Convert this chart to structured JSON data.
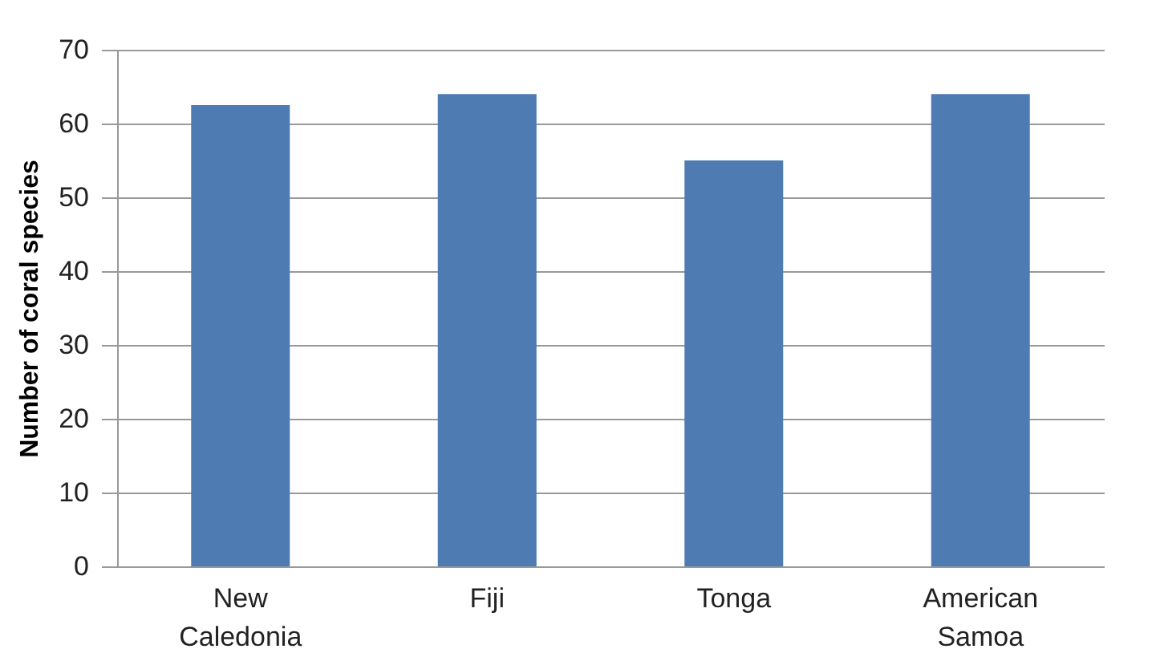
{
  "chart_data": {
    "type": "bar",
    "ylabel": "Number  of coral species",
    "categories": [
      "New Caledonia",
      "Fiji",
      "Tonga",
      "American Samoa"
    ],
    "values": [
      62.5,
      64,
      55,
      64
    ],
    "color": "#4f7bb3",
    "ylim": [
      0,
      70
    ],
    "yticks": [
      0,
      10,
      20,
      30,
      40,
      50,
      60,
      70
    ],
    "grid": "y"
  }
}
